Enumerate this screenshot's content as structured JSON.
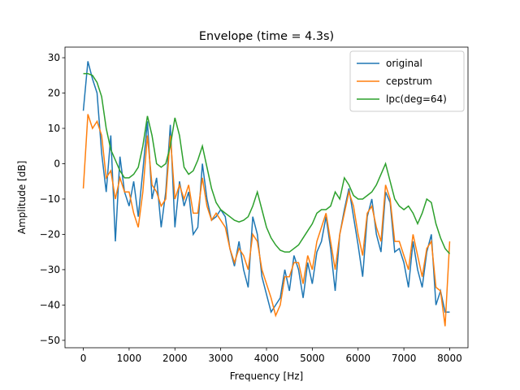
{
  "chart_data": {
    "type": "line",
    "title": "Envelope (time = 4.3s)",
    "x_label": "Frequency [Hz]",
    "y_label": "Amplitude [dB]",
    "x": [
      0,
      100,
      200,
      300,
      400,
      500,
      600,
      700,
      800,
      900,
      1000,
      1100,
      1200,
      1300,
      1400,
      1500,
      1600,
      1700,
      1800,
      1900,
      2000,
      2100,
      2200,
      2300,
      2400,
      2500,
      2600,
      2700,
      2800,
      2900,
      3000,
      3100,
      3200,
      3300,
      3400,
      3500,
      3600,
      3700,
      3800,
      3900,
      4000,
      4100,
      4200,
      4300,
      4400,
      4500,
      4600,
      4700,
      4800,
      4900,
      5000,
      5100,
      5200,
      5300,
      5400,
      5500,
      5600,
      5700,
      5800,
      5900,
      6000,
      6100,
      6200,
      6300,
      6400,
      6500,
      6600,
      6700,
      6800,
      6900,
      7000,
      7100,
      7200,
      7300,
      7400,
      7500,
      7600,
      7700,
      7800,
      7900,
      8000
    ],
    "series": [
      {
        "name": "original",
        "color": "#1f77b4",
        "values": [
          15,
          29,
          24,
          20,
          3,
          -8,
          8,
          -22,
          2,
          -8,
          -12,
          -5,
          -15,
          -2,
          12,
          -10,
          -4,
          -18,
          -8,
          11,
          -18,
          -5,
          -12,
          -8,
          -20,
          -18,
          0,
          -10,
          -16,
          -15,
          -13,
          -15,
          -24,
          -29,
          -22,
          -30,
          -35,
          -15,
          -20,
          -32,
          -37,
          -42,
          -40,
          -38,
          -30,
          -36,
          -26,
          -30,
          -38,
          -28,
          -34,
          -25,
          -22,
          -15,
          -24,
          -36,
          -20,
          -13,
          -7,
          -15,
          -23,
          -32,
          -15,
          -10,
          -20,
          -25,
          -8,
          -11,
          -25,
          -24,
          -28,
          -35,
          -22,
          -30,
          -35,
          -25,
          -20,
          -40,
          -36,
          -42,
          -42
        ]
      },
      {
        "name": "cepstrum",
        "color": "#ff7f0e",
        "values": [
          -7,
          14,
          10,
          12,
          8,
          -4,
          -2,
          -10,
          -4,
          -8,
          -8,
          -14,
          -18,
          -8,
          8,
          -6,
          -8,
          -12,
          -10,
          8,
          -10,
          -6,
          -10,
          -6,
          -14,
          -14,
          -4,
          -12,
          -16,
          -14,
          -16,
          -18,
          -24,
          -28,
          -24,
          -26,
          -30,
          -20,
          -22,
          -30,
          -34,
          -38,
          -43,
          -40,
          -32,
          -32,
          -28,
          -28,
          -34,
          -26,
          -30,
          -22,
          -18,
          -14,
          -22,
          -30,
          -20,
          -14,
          -8,
          -12,
          -20,
          -26,
          -14,
          -12,
          -18,
          -22,
          -6,
          -10,
          -22,
          -22,
          -26,
          -30,
          -20,
          -26,
          -32,
          -24,
          -22,
          -35,
          -36,
          -46,
          -22
        ]
      },
      {
        "name": "lpc(deg=64)",
        "color": "#2ca02c",
        "values": [
          25.5,
          25.5,
          25,
          23,
          19,
          10,
          4,
          1,
          -2,
          -4,
          -4,
          -3,
          -1,
          5,
          13.5,
          8,
          0,
          -1,
          0,
          5,
          13,
          8,
          -1,
          -3,
          -2,
          1,
          5,
          -1,
          -7,
          -11,
          -13,
          -14,
          -15,
          -16,
          -16.5,
          -16,
          -15,
          -12,
          -8,
          -13,
          -18,
          -21,
          -23,
          -24.5,
          -25,
          -25,
          -24,
          -23,
          -21,
          -19,
          -17,
          -14,
          -13,
          -13,
          -12,
          -8,
          -10,
          -4,
          -6,
          -9,
          -10,
          -10,
          -9,
          -8,
          -6,
          -3,
          0,
          -5,
          -10,
          -12,
          -13,
          -12,
          -14,
          -17,
          -14,
          -10,
          -11,
          -17,
          -21,
          -24,
          -25.5
        ]
      }
    ],
    "xlim": [
      -400,
      8400
    ],
    "ylim": [
      -52.1,
      33
    ],
    "xticks": [
      0,
      1000,
      2000,
      3000,
      4000,
      5000,
      6000,
      7000,
      8000
    ],
    "yticks": [
      {
        "value": -50,
        "label": "−50"
      },
      {
        "value": -40,
        "label": "−40"
      },
      {
        "value": -30,
        "label": "−30"
      },
      {
        "value": -20,
        "label": "−20"
      },
      {
        "value": -10,
        "label": "−10"
      },
      0,
      10,
      20,
      30
    ],
    "legend": "upper right"
  }
}
